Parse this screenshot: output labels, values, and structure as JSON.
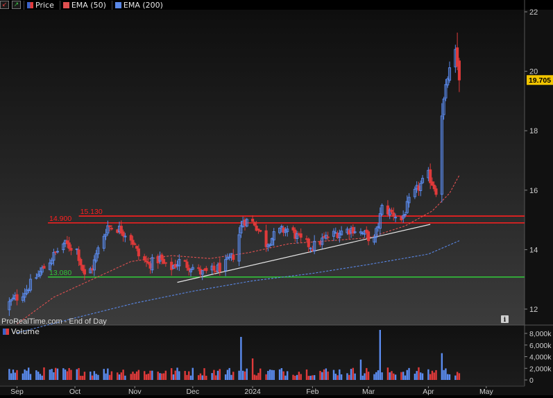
{
  "legend": {
    "price_label": "Price",
    "ema50_label": "EMA (50)",
    "ema200_label": "EMA (200)",
    "price_color": "#3a62c8",
    "ema50_color": "#e05050",
    "ema200_color": "#5a88e8"
  },
  "volume_label": "Volume",
  "footer_text": "ProRealTime.com - End of Day",
  "info_icon": "info-icon",
  "colors": {
    "up_candle": "#5b8cf0",
    "down_candle": "#e03a3a",
    "resistance": "#ff2020",
    "support": "#33c23a",
    "trendline": "#e6e6e6"
  },
  "chart_data": [
    {
      "type": "candlestick",
      "title": "",
      "xlabel": "",
      "ylabel": "",
      "ylim": [
        11.6,
        22.5
      ],
      "y_ticks": [
        12,
        14,
        16,
        18,
        20,
        22
      ],
      "x_tick_labels": [
        "Sep",
        "Oct",
        "Nov",
        "Dec",
        "2024",
        "Feb",
        "Mar",
        "Apr",
        "May"
      ],
      "last_price": 19.705,
      "horizontal_levels": [
        {
          "label": "15.130",
          "value": 15.13,
          "color": "#ff2020"
        },
        {
          "label": "14.900",
          "value": 14.9,
          "color": "#ff2020"
        },
        {
          "label": "13.080",
          "value": 13.08,
          "color": "#33c23a"
        }
      ],
      "trendline": {
        "from": [
          "2023-11-23",
          12.9
        ],
        "to": [
          "2024-04-02",
          14.85
        ]
      },
      "series": [
        {
          "name": "Price",
          "kind": "close",
          "points": [
            [
              "2023-08-26",
              12.1
            ],
            [
              "2023-09-05",
              12.6
            ],
            [
              "2023-09-15",
              13.4
            ],
            [
              "2023-09-25",
              14.2
            ],
            [
              "2023-10-02",
              14.0
            ],
            [
              "2023-10-06",
              13.1
            ],
            [
              "2023-10-10",
              13.4
            ],
            [
              "2023-10-14",
              14.2
            ],
            [
              "2023-10-18",
              14.8
            ],
            [
              "2023-10-24",
              14.7
            ],
            [
              "2023-10-30",
              14.4
            ],
            [
              "2023-11-03",
              13.8
            ],
            [
              "2023-11-08",
              13.5
            ],
            [
              "2023-11-14",
              13.7
            ],
            [
              "2023-11-18",
              13.3
            ],
            [
              "2023-11-24",
              13.6
            ],
            [
              "2023-12-01",
              13.4
            ],
            [
              "2023-12-06",
              13.2
            ],
            [
              "2023-12-12",
              13.3
            ],
            [
              "2023-12-18",
              13.5
            ],
            [
              "2023-12-22",
              13.8
            ],
            [
              "2023-12-27",
              15.0
            ],
            [
              "2024-01-02",
              14.9
            ],
            [
              "2024-01-08",
              14.2
            ],
            [
              "2024-01-14",
              14.6
            ],
            [
              "2024-01-20",
              14.7
            ],
            [
              "2024-01-26",
              14.3
            ],
            [
              "2024-02-01",
              14.1
            ],
            [
              "2024-02-08",
              14.4
            ],
            [
              "2024-02-15",
              14.6
            ],
            [
              "2024-02-22",
              14.7
            ],
            [
              "2024-02-28",
              14.5
            ],
            [
              "2024-03-04",
              14.3
            ],
            [
              "2024-03-08",
              15.4
            ],
            [
              "2024-03-14",
              15.2
            ],
            [
              "2024-03-18",
              15.0
            ],
            [
              "2024-03-22",
              15.6
            ],
            [
              "2024-03-27",
              16.1
            ],
            [
              "2024-04-01",
              16.5
            ],
            [
              "2024-04-05",
              16.0
            ],
            [
              "2024-04-08",
              18.6
            ],
            [
              "2024-04-11",
              19.8
            ],
            [
              "2024-04-15",
              20.6
            ],
            [
              "2024-04-17",
              19.705
            ]
          ]
        },
        {
          "name": "EMA (50)",
          "points": [
            [
              "2023-09-01",
              11.5
            ],
            [
              "2023-09-20",
              12.4
            ],
            [
              "2023-10-10",
              13.0
            ],
            [
              "2023-10-30",
              13.6
            ],
            [
              "2023-11-20",
              13.8
            ],
            [
              "2023-12-10",
              13.7
            ],
            [
              "2023-12-30",
              13.9
            ],
            [
              "2024-01-20",
              14.2
            ],
            [
              "2024-02-10",
              14.3
            ],
            [
              "2024-03-01",
              14.4
            ],
            [
              "2024-03-20",
              14.8
            ],
            [
              "2024-04-03",
              15.3
            ],
            [
              "2024-04-12",
              15.9
            ],
            [
              "2024-04-17",
              16.5
            ]
          ]
        },
        {
          "name": "EMA (200)",
          "points": [
            [
              "2023-09-01",
              11.2
            ],
            [
              "2023-10-01",
              11.7
            ],
            [
              "2023-11-01",
              12.2
            ],
            [
              "2023-12-01",
              12.6
            ],
            [
              "2024-01-01",
              12.95
            ],
            [
              "2024-02-01",
              13.2
            ],
            [
              "2024-03-01",
              13.5
            ],
            [
              "2024-04-01",
              13.85
            ],
            [
              "2024-04-17",
              14.3
            ]
          ]
        }
      ]
    },
    {
      "type": "bar",
      "title": "Volume",
      "ylim": [
        -300,
        8800
      ],
      "y_ticks": [
        0,
        2000,
        4000,
        6000,
        8000
      ],
      "y_tick_labels": [
        "0",
        "2,000k",
        "4,000k",
        "6,000k",
        "8,000k"
      ],
      "spikes": [
        {
          "x": "2023-12-27",
          "value": 7400
        },
        {
          "x": "2024-03-08",
          "value": 8600
        },
        {
          "x": "2024-04-08",
          "value": 4600
        },
        {
          "x": "2024-01-02",
          "value": 3700
        },
        {
          "x": "2024-02-26",
          "value": 3500
        }
      ]
    }
  ]
}
